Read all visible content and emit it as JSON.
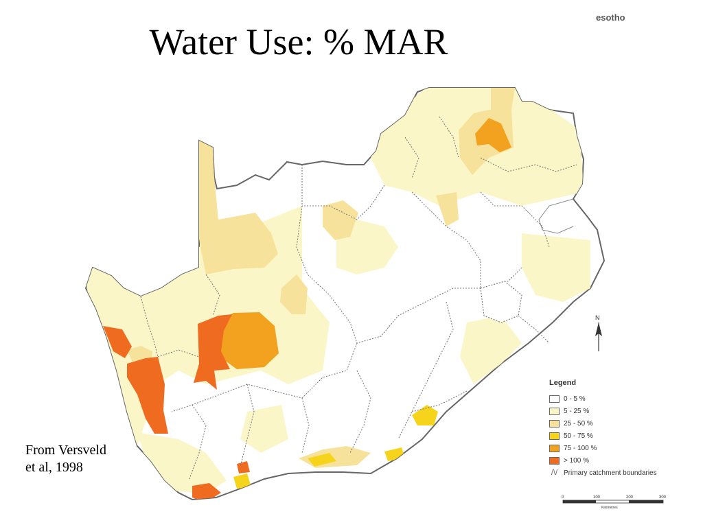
{
  "header": {
    "title": "Water Use: % MAR",
    "corner_label": "esotho"
  },
  "source_note": "From Versveld et al, 1998",
  "legend": {
    "title": "Legend",
    "items": [
      {
        "label": "0 - 5 %",
        "color": "#ffffff"
      },
      {
        "label": "5 - 25 %",
        "color": "#fbf6c8"
      },
      {
        "label": "25 - 50 %",
        "color": "#f6e29a"
      },
      {
        "label": "50 - 75 %",
        "color": "#f7d41c"
      },
      {
        "label": "75 - 100 %",
        "color": "#f3a21f"
      },
      {
        "label": "> 100 %",
        "color": "#ee6b20"
      }
    ],
    "boundary_label": "Primary catchment boundaries"
  },
  "north_label": "N",
  "scale": {
    "ticks": [
      "0",
      "100",
      "200",
      "300"
    ],
    "unit": "Kilometres"
  },
  "colors": {
    "border": "#666666",
    "catchment_line": "#7a7a7a"
  }
}
